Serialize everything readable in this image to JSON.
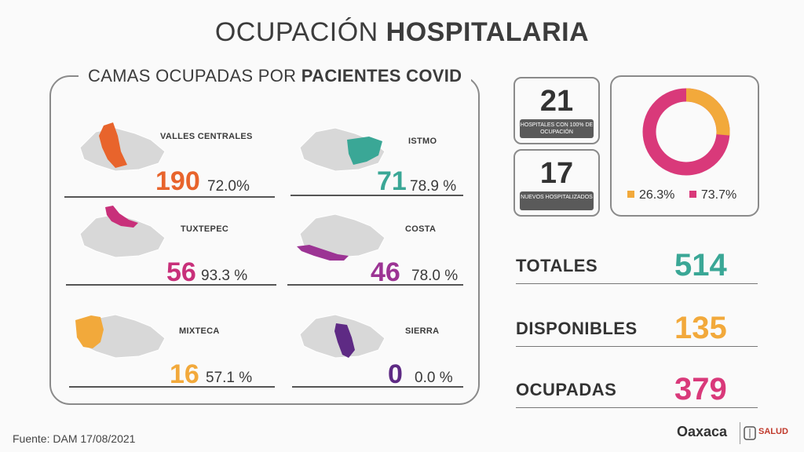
{
  "title": {
    "light": "OCUPACIÓN",
    "bold": "HOSPITALARIA"
  },
  "panel": {
    "title_light": "CAMAS OCUPADAS POR",
    "title_bold": "PACIENTES COVID"
  },
  "regions": [
    {
      "name": "VALLES CENTRALES",
      "value": "190",
      "percent": "72.0%",
      "color": "#e8642c"
    },
    {
      "name": "ISTMO",
      "value": "71",
      "percent": "78.9 %",
      "color": "#3aa796"
    },
    {
      "name": "TUXTEPEC",
      "value": "56",
      "percent": "93.3 %",
      "color": "#c8307a"
    },
    {
      "name": "COSTA",
      "value": "46",
      "percent": "78.0 %",
      "color": "#9c3494"
    },
    {
      "name": "MIXTECA",
      "value": "16",
      "percent": "57.1 %",
      "color": "#f2a93b"
    },
    {
      "name": "SIERRA",
      "value": "0",
      "percent": "0.0 %",
      "color": "#5e2a84"
    }
  ],
  "stats": [
    {
      "value": "21",
      "caption": "HOSPITALES CON 100% DE OCUPACIÓN"
    },
    {
      "value": "17",
      "caption": "NUEVOS HOSPITALIZADOS"
    }
  ],
  "donut": {
    "segments": [
      {
        "label": "26.3%",
        "value": 26.3,
        "color": "#f2a93b"
      },
      {
        "label": "73.7%",
        "value": 73.7,
        "color": "#d9397a"
      }
    ]
  },
  "totals": [
    {
      "label": "TOTALES",
      "value": "514",
      "color": "#3aa796"
    },
    {
      "label": "DISPONIBLES",
      "value": "135",
      "color": "#f2a93b"
    },
    {
      "label": "OCUPADAS",
      "value": "379",
      "color": "#d9397a"
    }
  ],
  "footer": {
    "source": "Fuente: DAM 17/08/2021"
  },
  "logos": {
    "oaxaca": "Oaxaca",
    "salud": "SALUD"
  }
}
